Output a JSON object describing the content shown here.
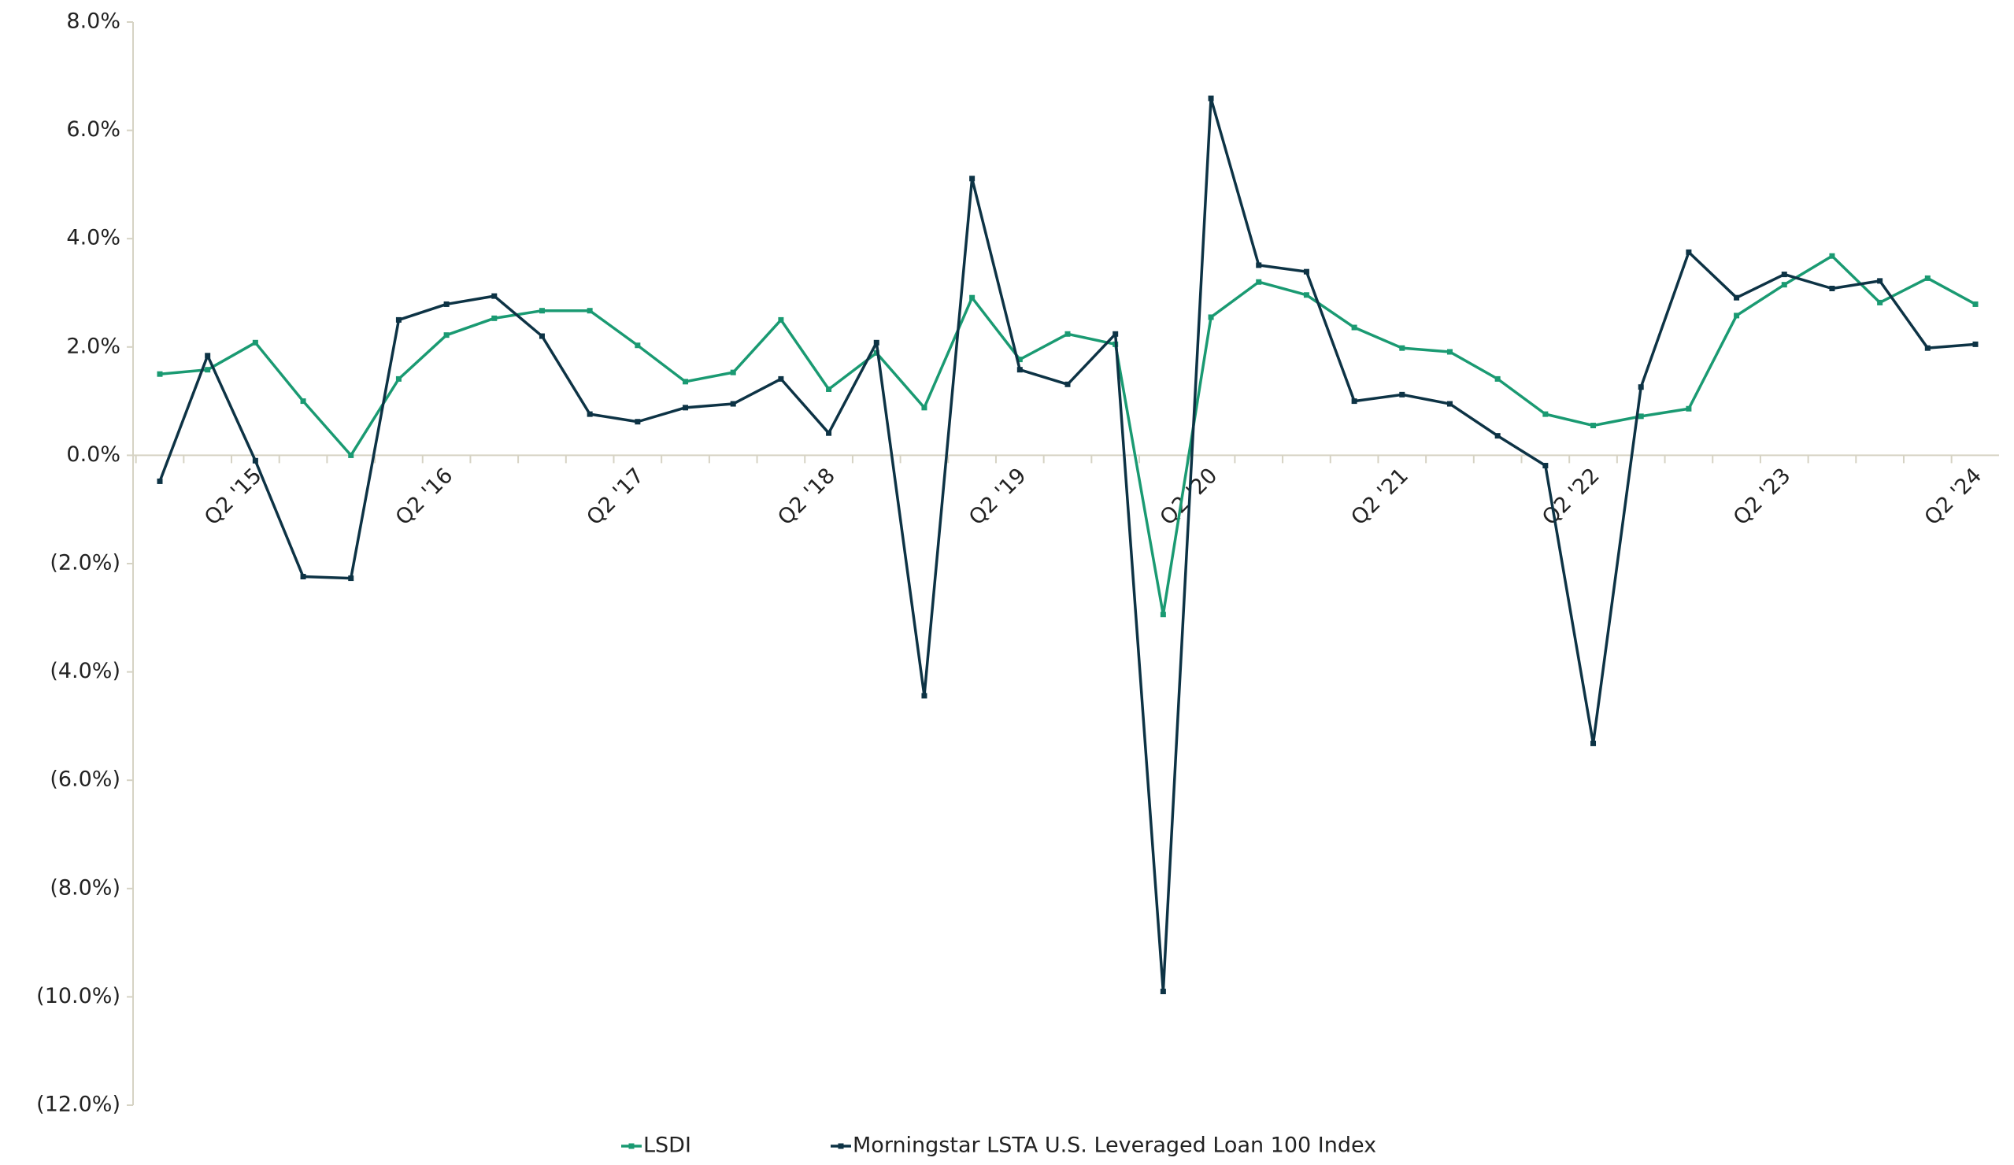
{
  "chart_data": {
    "type": "line",
    "categories": [
      null,
      null,
      "Q2 '15",
      null,
      null,
      null,
      "Q2 '16",
      null,
      null,
      null,
      "Q2 '17",
      null,
      null,
      null,
      "Q2 '18",
      null,
      null,
      null,
      "Q2 '19",
      null,
      null,
      null,
      "Q2 '20",
      null,
      null,
      null,
      "Q2 '21",
      null,
      null,
      null,
      "Q2 '22",
      null,
      null,
      null,
      "Q2 '23",
      null,
      null,
      null,
      "Q2 '24"
    ],
    "series": [
      {
        "name": "LSDI",
        "color": "#1a9a72",
        "values": [
          1.5,
          1.58,
          2.08,
          1.0,
          0.0,
          1.41,
          2.22,
          2.53,
          2.67,
          2.67,
          2.03,
          1.36,
          1.53,
          2.5,
          1.22,
          1.89,
          0.88,
          2.91,
          1.77,
          2.24,
          2.05,
          -2.94,
          2.55,
          3.2,
          2.96,
          2.36,
          1.98,
          1.91,
          1.41,
          0.76,
          0.55,
          0.72,
          0.86,
          2.58,
          3.15,
          3.68,
          2.82,
          3.27,
          2.79
        ]
      },
      {
        "name": "Morningstar LSTA U.S. Leveraged Loan 100 Index",
        "color": "#0d3345",
        "values": [
          -0.48,
          1.84,
          -0.1,
          -2.24,
          -2.27,
          2.5,
          2.79,
          2.94,
          2.2,
          0.76,
          0.62,
          0.88,
          0.95,
          1.41,
          0.41,
          2.08,
          -4.44,
          5.11,
          1.58,
          1.31,
          2.24,
          -9.9,
          6.59,
          3.51,
          3.39,
          1.0,
          1.12,
          0.95,
          0.36,
          -0.19,
          -5.32,
          1.26,
          3.75,
          2.91,
          3.34,
          3.08,
          3.22,
          1.98,
          2.05
        ]
      }
    ],
    "ylim": [
      -12,
      8
    ],
    "yticks": [
      {
        "value": -12,
        "label": "(12.0%)"
      },
      {
        "value": -10,
        "label": "(10.0%)"
      },
      {
        "value": -8,
        "label": "(8.0%)"
      },
      {
        "value": -6,
        "label": "(6.0%)"
      },
      {
        "value": -4,
        "label": "(4.0%)"
      },
      {
        "value": -2,
        "label": "(2.0%)"
      },
      {
        "value": 0,
        "label": "0.0%"
      },
      {
        "value": 2,
        "label": "2.0%"
      },
      {
        "value": 4,
        "label": "4.0%"
      },
      {
        "value": 6,
        "label": "6.0%"
      },
      {
        "value": 8,
        "label": "8.0%"
      }
    ],
    "legend": "bottom"
  }
}
